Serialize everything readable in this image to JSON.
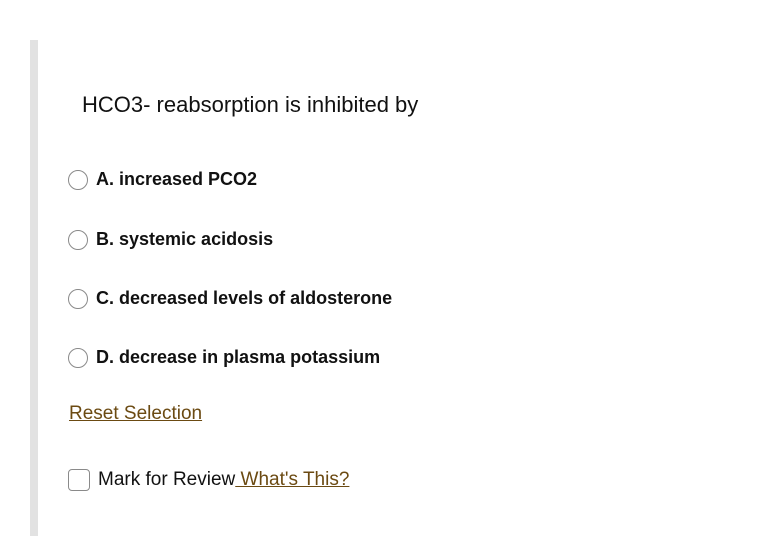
{
  "question": {
    "text": "HCO3- reabsorption is inhibited by"
  },
  "options": [
    {
      "label": "A. increased PCO2",
      "selected": false
    },
    {
      "label": "B. systemic acidosis",
      "selected": false
    },
    {
      "label": "C. decreased levels of aldosterone",
      "selected": false
    },
    {
      "label": "D. decrease in plasma potassium",
      "selected": false
    }
  ],
  "reset_label": "Reset Selection",
  "review": {
    "label": "Mark for Review",
    "checked": false,
    "help_link": " What's This?"
  },
  "colors": {
    "link": "#6b4a12",
    "side_bar": "#e2e2e2"
  }
}
